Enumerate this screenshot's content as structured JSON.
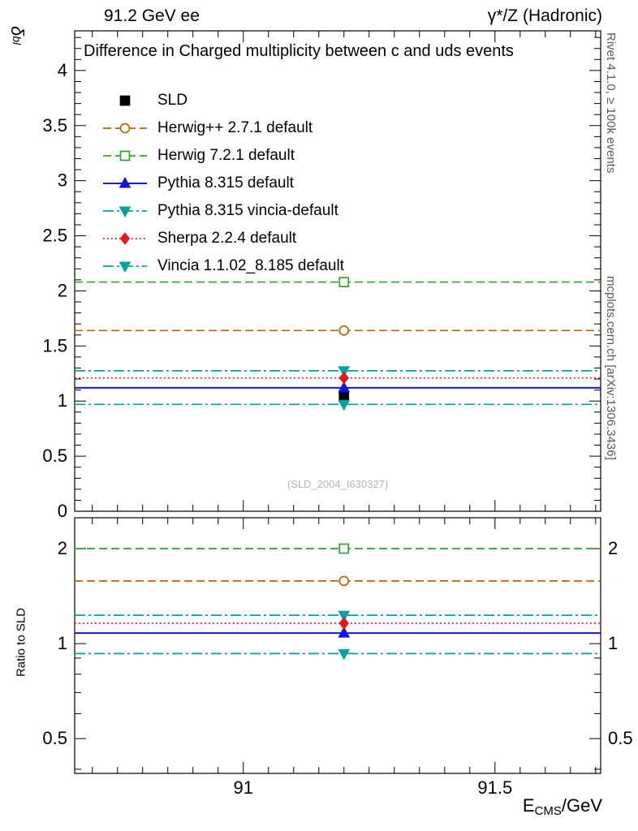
{
  "chart_data": {
    "type": "line",
    "title": "Difference in Charged multiplicity between c and uds events",
    "header_left": "91.2 GeV ee",
    "header_right": "γ*/Z (Hadronic)",
    "xlabel": {
      "base": "E",
      "sub": "CMS",
      "suffix": "/GeV"
    },
    "ylabel": {
      "symbol": "δ",
      "sub": "bl"
    },
    "ratio_ylabel": "Ratio to SLD",
    "watermark": "(SLD_2004_I630327)",
    "side_note_top": "Rivet 4.1.0, ≥ 100k events",
    "side_note_bottom": "mcplots.cern.ch [arXiv:1306.3436]",
    "x_point": 91.2,
    "xlim": [
      90.665,
      91.71
    ],
    "x_major_ticks": [
      91,
      91.5
    ],
    "x_minor_step": 0.05,
    "main": {
      "yscale": "linear",
      "ylim": [
        0,
        4.36
      ],
      "y_major_step": 0.5,
      "y_minor_step": 0.1
    },
    "ratio": {
      "yscale": "log",
      "ylim": [
        0.388,
        2.505
      ],
      "y_major_ticks": [
        0.5,
        1,
        2
      ],
      "y_minor_ticks": [
        0.4,
        0.6,
        0.7,
        0.8,
        0.9
      ]
    },
    "series": [
      {
        "label": "SLD",
        "color": "#000000",
        "line": "none",
        "marker": "square",
        "fill": "filled",
        "y_main": 1.04,
        "yerr": 0.065,
        "y_ratio": null
      },
      {
        "label": "Herwig++ 2.7.1 default",
        "color": "#b5650b",
        "line": "dashed",
        "marker": "circle",
        "fill": "open",
        "y_main": 1.64,
        "y_ratio": 1.58
      },
      {
        "label": "Herwig 7.2.1 default",
        "color": "#35a02f",
        "line": "dashed",
        "marker": "square",
        "fill": "open",
        "y_main": 2.08,
        "y_ratio": 2.0
      },
      {
        "label": "Pythia 8.315 default",
        "color": "#1515dd",
        "line": "solid",
        "marker": "triangle-up",
        "fill": "filled",
        "y_main": 1.12,
        "y_ratio": 1.08
      },
      {
        "label": "Pythia 8.315 vincia-default",
        "color": "#00a2a2",
        "line": "dashdot",
        "marker": "triangle-down",
        "fill": "filled",
        "y_main": 1.275,
        "y_ratio": 1.23
      },
      {
        "label": "Sherpa 2.2.4 default",
        "color": "#e81717",
        "line": "dotted",
        "marker": "diamond",
        "fill": "filled",
        "y_main": 1.21,
        "y_ratio": 1.16
      },
      {
        "label": "Vincia 1.1.02_8.185 default",
        "color": "#00a2a2",
        "line": "dashdot",
        "marker": "triangle-down",
        "fill": "filled",
        "y_main": 0.97,
        "y_ratio": 0.93
      }
    ]
  }
}
